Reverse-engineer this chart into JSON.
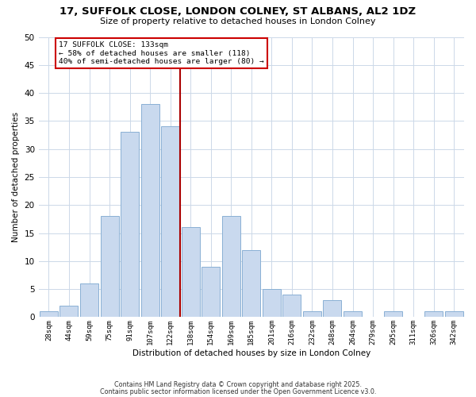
{
  "title1": "17, SUFFOLK CLOSE, LONDON COLNEY, ST ALBANS, AL2 1DZ",
  "title2": "Size of property relative to detached houses in London Colney",
  "xlabel": "Distribution of detached houses by size in London Colney",
  "ylabel": "Number of detached properties",
  "bar_labels": [
    "28sqm",
    "44sqm",
    "59sqm",
    "75sqm",
    "91sqm",
    "107sqm",
    "122sqm",
    "138sqm",
    "154sqm",
    "169sqm",
    "185sqm",
    "201sqm",
    "216sqm",
    "232sqm",
    "248sqm",
    "264sqm",
    "279sqm",
    "295sqm",
    "311sqm",
    "326sqm",
    "342sqm"
  ],
  "bar_values": [
    1,
    2,
    6,
    18,
    33,
    38,
    34,
    16,
    9,
    18,
    12,
    5,
    4,
    1,
    3,
    1,
    0,
    1,
    0,
    1,
    1
  ],
  "bar_color": "#c9d9ee",
  "bar_edge_color": "#8ab0d4",
  "vline_color": "#aa0000",
  "annotation_title": "17 SUFFOLK CLOSE: 133sqm",
  "annotation_line1": "← 58% of detached houses are smaller (118)",
  "annotation_line2": "40% of semi-detached houses are larger (80) →",
  "annotation_box_color": "#cc0000",
  "annotation_fill": "#ffffff",
  "ylim": [
    0,
    50
  ],
  "yticks": [
    0,
    5,
    10,
    15,
    20,
    25,
    30,
    35,
    40,
    45,
    50
  ],
  "footnote1": "Contains HM Land Registry data © Crown copyright and database right 2025.",
  "footnote2": "Contains public sector information licensed under the Open Government Licence v3.0.",
  "bg_color": "#ffffff",
  "grid_color": "#ccd8e8"
}
